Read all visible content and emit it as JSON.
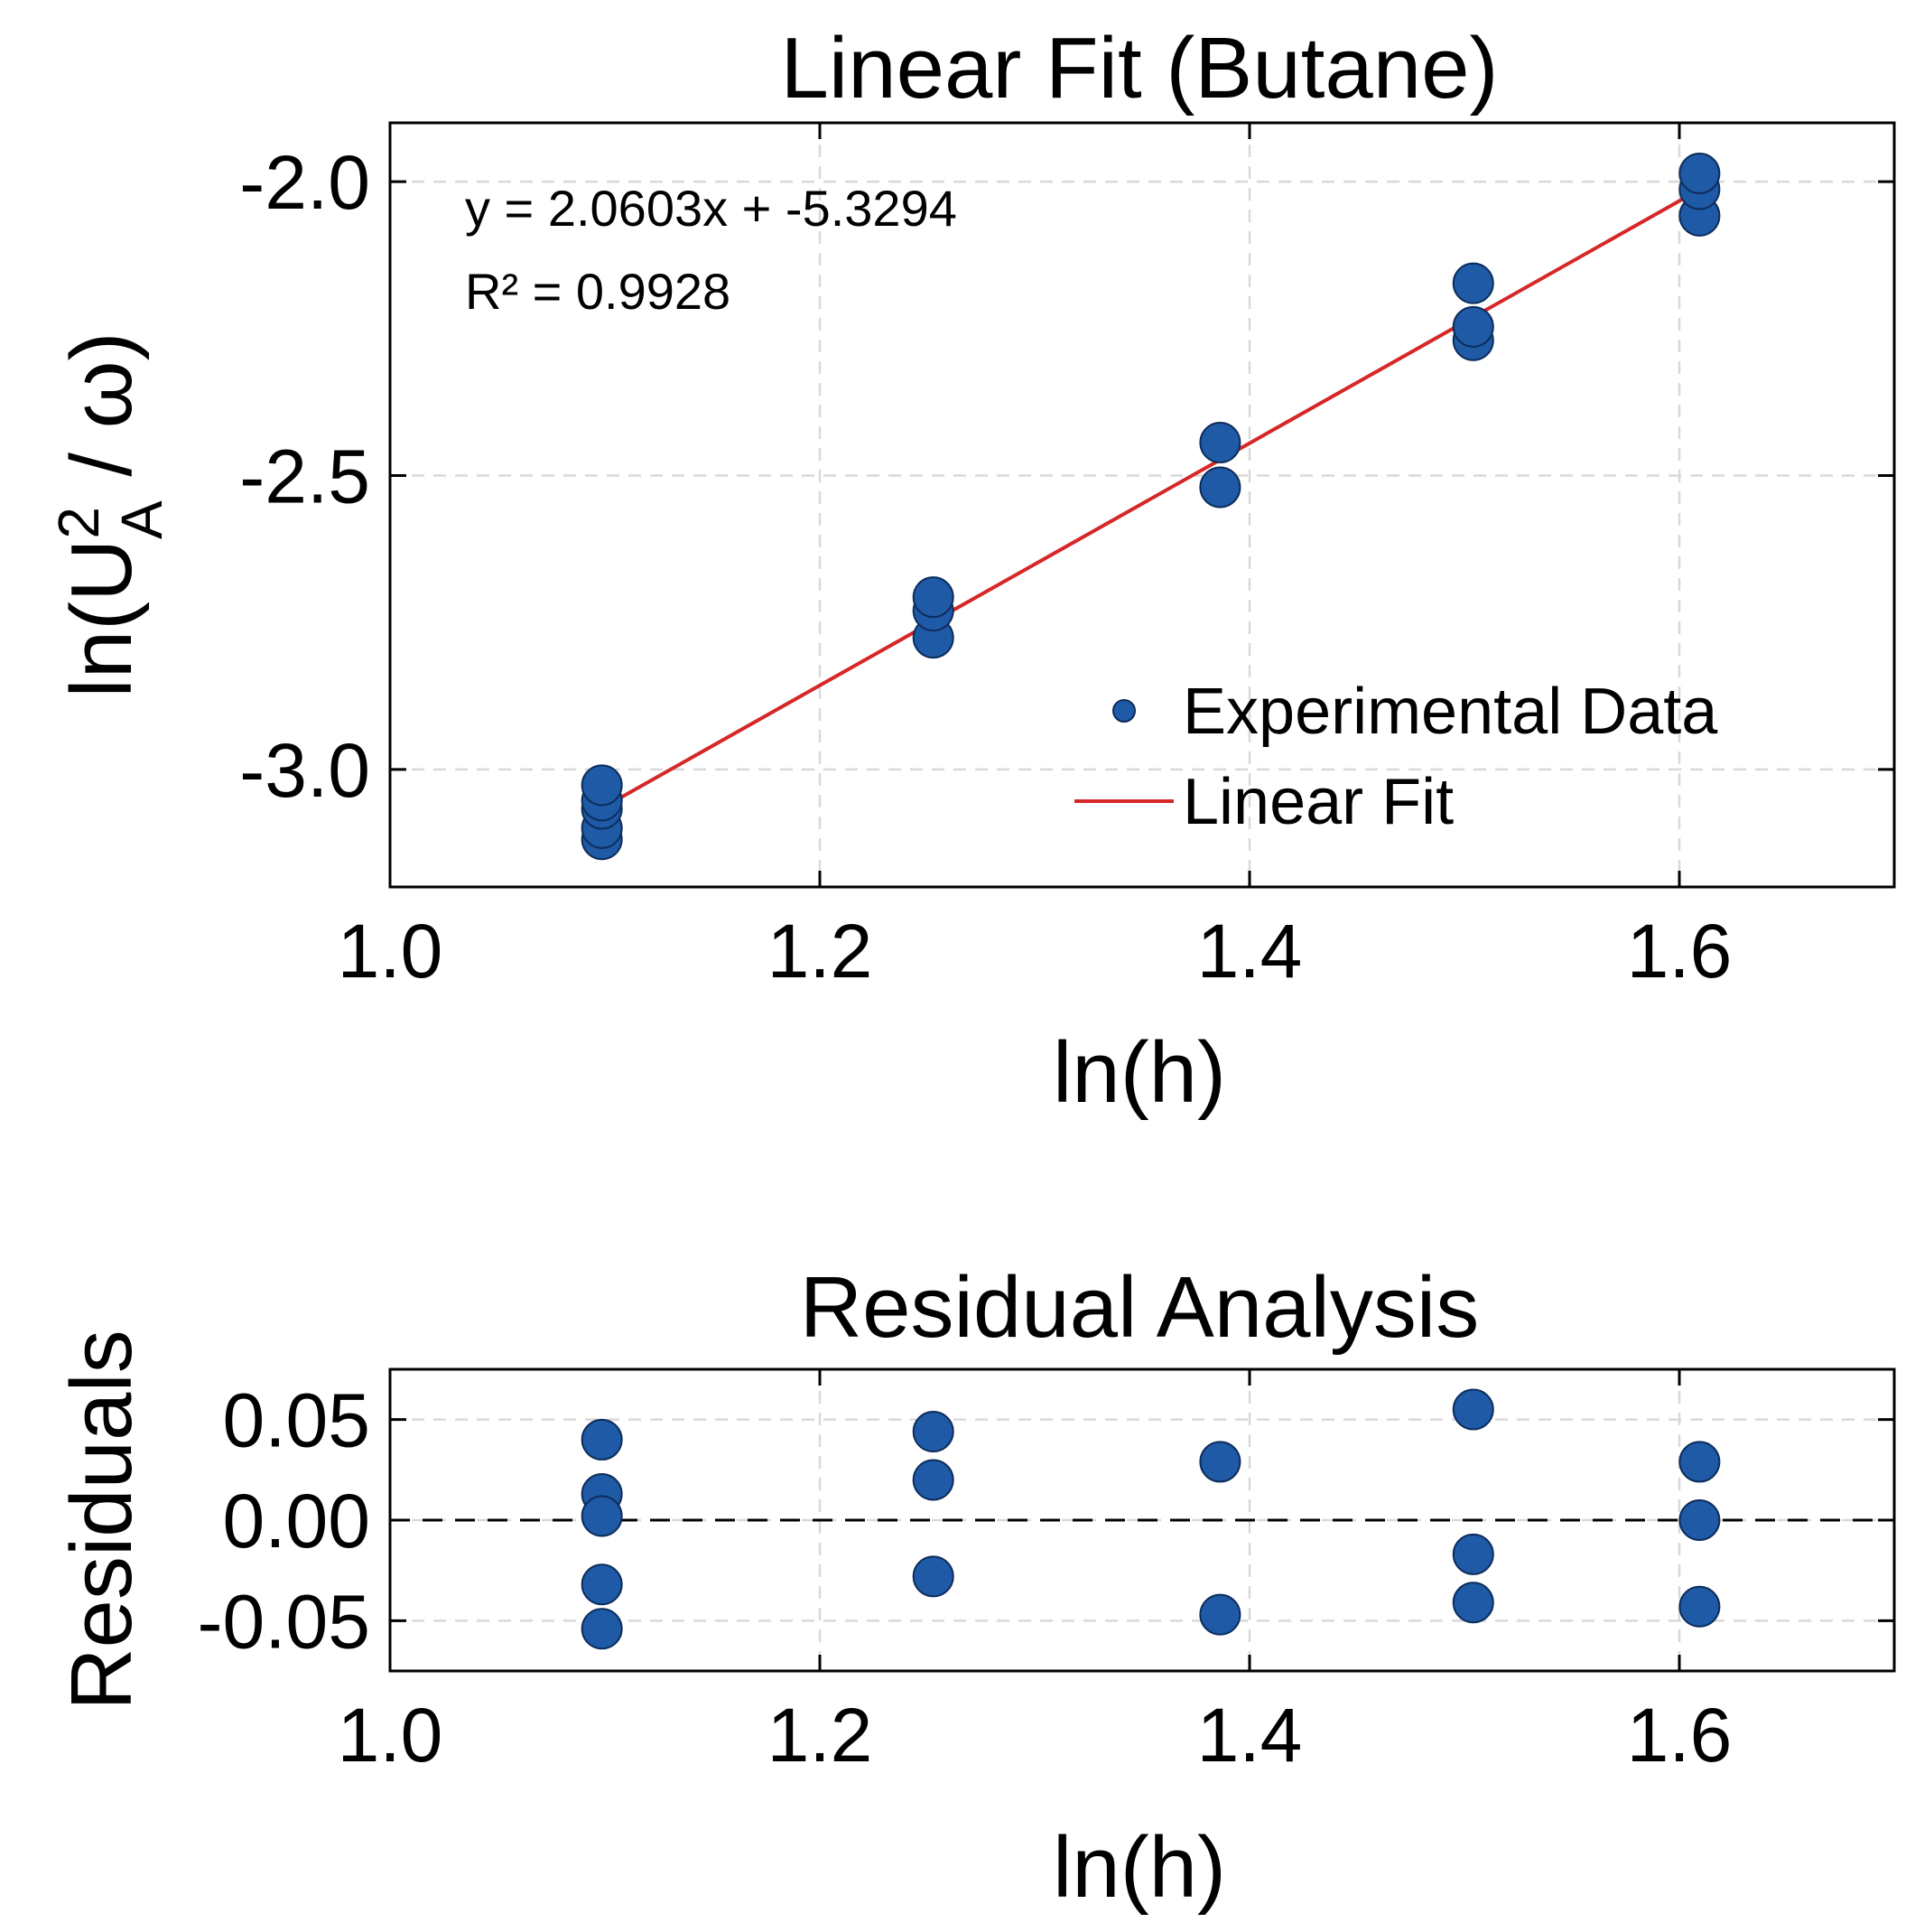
{
  "colors": {
    "marker_fill": "#1f5aa6",
    "marker_edge": "#0d2d5c",
    "fit_line": "#d62728",
    "grid": "#d9d9d9",
    "axis": "#000000"
  },
  "chart_data": [
    {
      "type": "scatter",
      "title": "Linear Fit (Butane)",
      "xlabel": "ln(h)",
      "ylabel": {
        "prefix": "ln(U",
        "sup": "2",
        "sub": "A",
        "suffix": " / ω)"
      },
      "xlim": [
        1.0,
        1.7
      ],
      "ylim": [
        -3.2,
        -1.9
      ],
      "xticks": [
        1.0,
        1.2,
        1.4,
        1.6
      ],
      "xtick_labels": [
        "1.0",
        "1.2",
        "1.4",
        "1.6"
      ],
      "yticks": [
        -3.0,
        -2.5,
        -2.0
      ],
      "ytick_labels": [
        "-3.0",
        "-2.5",
        "-2.0"
      ],
      "grid": true,
      "legend_position": "bottom-right",
      "series": [
        {
          "name": "Experimental Data",
          "kind": "scatter",
          "points": [
            [
              1.0986,
              -3.119
            ],
            [
              1.0986,
              -3.1
            ],
            [
              1.0986,
              -3.067
            ],
            [
              1.0986,
              -3.053
            ],
            [
              1.0986,
              -3.027
            ],
            [
              1.2528,
              -2.776
            ],
            [
              1.2528,
              -2.73
            ],
            [
              1.2528,
              -2.707
            ],
            [
              1.3863,
              -2.52
            ],
            [
              1.3863,
              -2.444
            ],
            [
              1.5041,
              -2.27
            ],
            [
              1.5041,
              -2.247
            ],
            [
              1.5041,
              -2.173
            ],
            [
              1.6094,
              -2.058
            ],
            [
              1.6094,
              -2.013
            ],
            [
              1.6094,
              -1.986
            ]
          ]
        },
        {
          "name": "Linear Fit",
          "kind": "line",
          "slope": 2.0603,
          "intercept": -5.3294,
          "x_range": [
            1.0986,
            1.6094
          ]
        }
      ],
      "annotations": [
        "y = 2.0603x + -5.3294",
        "R² = 0.9928"
      ]
    },
    {
      "type": "scatter",
      "title": "Residual Analysis",
      "xlabel": "ln(h)",
      "ylabel": "Residuals",
      "xlim": [
        1.0,
        1.7
      ],
      "ylim": [
        -0.075,
        0.075
      ],
      "xticks": [
        1.0,
        1.2,
        1.4,
        1.6
      ],
      "xtick_labels": [
        "1.0",
        "1.2",
        "1.4",
        "1.6"
      ],
      "yticks": [
        -0.05,
        0.0,
        0.05
      ],
      "ytick_labels": [
        "-0.05",
        "0.00",
        "0.05"
      ],
      "grid": true,
      "zero_line": 0.0,
      "series": [
        {
          "kind": "scatter",
          "points": [
            [
              1.0986,
              0.04
            ],
            [
              1.0986,
              0.013
            ],
            [
              1.0986,
              0.002
            ],
            [
              1.0986,
              -0.032
            ],
            [
              1.0986,
              -0.054
            ],
            [
              1.2528,
              0.044
            ],
            [
              1.2528,
              0.02
            ],
            [
              1.2528,
              -0.028
            ],
            [
              1.3863,
              0.029
            ],
            [
              1.3863,
              -0.047
            ],
            [
              1.5041,
              0.055
            ],
            [
              1.5041,
              -0.017
            ],
            [
              1.5041,
              -0.041
            ],
            [
              1.6094,
              0.029
            ],
            [
              1.6094,
              0.0
            ],
            [
              1.6094,
              -0.043
            ]
          ]
        }
      ]
    }
  ]
}
